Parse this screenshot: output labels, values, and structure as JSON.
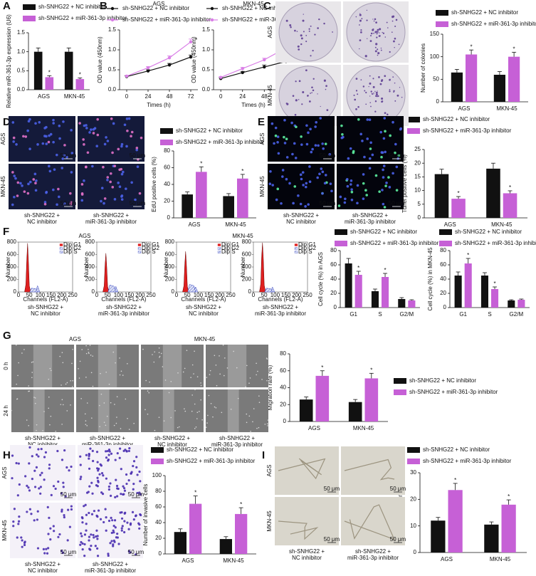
{
  "panel_letters": [
    "A",
    "B",
    "C",
    "D",
    "E",
    "F",
    "G",
    "H",
    "I"
  ],
  "scale_bar_label": "50 μm",
  "chart_data": [
    {
      "type": "bar",
      "ylabel": "Relative miR-361-3p expression (U6)",
      "categories": [
        "AGS",
        "MKN-45"
      ],
      "ylim": [
        0,
        1.5
      ],
      "yticks": [
        {
          "value": 0,
          "label": "0.0"
        },
        {
          "value": 0.5,
          "label": "0.5"
        },
        {
          "value": 1,
          "label": "1.0"
        },
        {
          "value": 1.5,
          "label": "1.5"
        }
      ],
      "series": [
        {
          "name": "sh-SNHG22 + NC inhibitor",
          "color": "#111111",
          "values": [
            1.0,
            1.0
          ],
          "errors": [
            0.1,
            0.1
          ]
        },
        {
          "name": "sh-SNHG22 + miR-361-3p inhibitor",
          "color": "#c660d6",
          "values": [
            0.33,
            0.28
          ],
          "errors": [
            0.04,
            0.03
          ],
          "significance": [
            "*",
            "*"
          ]
        }
      ]
    },
    {
      "type": "line",
      "title": "AGS",
      "xlabel": "Times (h)",
      "ylabel": "OD value (450nm)",
      "x": [
        0,
        24,
        48,
        72
      ],
      "xlim": [
        -8,
        80
      ],
      "xticks": [
        0,
        24,
        48,
        72
      ],
      "ylim": [
        0,
        1.5
      ],
      "yticks": [
        {
          "value": 0,
          "label": "0.0"
        },
        {
          "value": 0.5,
          "label": "0.5"
        },
        {
          "value": 1,
          "label": "1.0"
        },
        {
          "value": 1.5,
          "label": "1.5"
        }
      ],
      "series": [
        {
          "name": "sh-SNHG22 + NC inhibitor",
          "color": "#111111",
          "values": [
            0.33,
            0.47,
            0.62,
            0.82
          ],
          "errors": [
            0.02,
            0.03,
            0.04,
            0.05
          ]
        },
        {
          "name": "sh-SNHG22 + miR-361-3p inhibitor",
          "color": "#d97fe6",
          "values": [
            0.34,
            0.55,
            0.8,
            1.2
          ],
          "errors": [
            0.02,
            0.03,
            0.05,
            0.07
          ],
          "significance": [
            null,
            null,
            null,
            "*"
          ]
        }
      ]
    },
    {
      "type": "line",
      "title": "MKN-45",
      "xlabel": "Times (h)",
      "ylabel": "OD value (450nm)",
      "x": [
        0,
        24,
        48,
        72
      ],
      "xlim": [
        -8,
        80
      ],
      "xticks": [
        0,
        24,
        48,
        72
      ],
      "ylim": [
        0,
        1.5
      ],
      "yticks": [
        {
          "value": 0,
          "label": "0.0"
        },
        {
          "value": 0.5,
          "label": "0.5"
        },
        {
          "value": 1,
          "label": "1.0"
        },
        {
          "value": 1.5,
          "label": "1.5"
        }
      ],
      "series": [
        {
          "name": "sh-SNHG22 + NC inhibitor",
          "color": "#111111",
          "values": [
            0.28,
            0.43,
            0.57,
            0.71
          ],
          "errors": [
            0.02,
            0.03,
            0.05,
            0.06
          ]
        },
        {
          "name": "sh-SNHG22 + miR-361-3p inhibitor",
          "color": "#d97fe6",
          "values": [
            0.31,
            0.53,
            0.75,
            1.05
          ],
          "errors": [
            0.02,
            0.03,
            0.04,
            0.06
          ],
          "significance": [
            null,
            null,
            null,
            "*"
          ]
        }
      ]
    },
    {
      "type": "bar",
      "ylabel": "Number of colonies",
      "categories": [
        "AGS",
        "MKN-45"
      ],
      "ylim": [
        0,
        150
      ],
      "yticks": [
        0,
        50,
        100,
        150
      ],
      "series": [
        {
          "name": "sh-SNHG22 + NC inhibitor",
          "color": "#111111",
          "values": [
            65,
            60
          ],
          "errors": [
            7,
            7
          ]
        },
        {
          "name": "sh-SNHG22 + miR-361-3p inhibitor",
          "color": "#c660d6",
          "values": [
            105,
            100
          ],
          "errors": [
            10,
            10
          ],
          "significance": [
            "*",
            "*"
          ]
        }
      ]
    },
    {
      "type": "bar",
      "ylabel": "EdU positive cells (%)",
      "categories": [
        "AGS",
        "MKN-45"
      ],
      "ylim": [
        0,
        80
      ],
      "yticks": [
        0,
        20,
        40,
        60,
        80
      ],
      "series": [
        {
          "name": "sh-SNHG22 + NC inhibitor",
          "color": "#111111",
          "values": [
            28,
            26
          ],
          "errors": [
            3,
            3
          ]
        },
        {
          "name": "sh-SNHG22 + miR-361-3p inhibitor",
          "color": "#c660d6",
          "values": [
            55,
            47
          ],
          "errors": [
            6,
            5
          ],
          "significance": [
            "*",
            "*"
          ]
        }
      ]
    },
    {
      "type": "bar",
      "ylabel": "Tunel positive cells (%)",
      "categories": [
        "AGS",
        "MKN-45"
      ],
      "ylim": [
        0,
        25
      ],
      "yticks": [
        0,
        5,
        10,
        15,
        20,
        25
      ],
      "series": [
        {
          "name": "sh-SNHG22 + NC inhibitor",
          "color": "#111111",
          "values": [
            16,
            18
          ],
          "errors": [
            1.8,
            2
          ]
        },
        {
          "name": "sh-SNHG22 + miR-361-3p inhibitor",
          "color": "#c660d6",
          "values": [
            7,
            9
          ],
          "errors": [
            0.8,
            0.9
          ],
          "significance": [
            "*",
            "*"
          ]
        }
      ]
    },
    {
      "type": "flow",
      "title": "AGS",
      "ylabel": "Number",
      "xlabel": "Channels (FL2-A)",
      "caption": [
        "sh-SNHG22 +",
        "NC inhibitor"
      ],
      "xlim": [
        0,
        250
      ],
      "xticks": [
        0,
        50,
        100,
        150,
        200,
        250
      ],
      "ylim": [
        0,
        800
      ],
      "yticks": [
        0,
        200,
        400,
        600,
        800
      ],
      "series": [
        {
          "name": "Dip G1",
          "color": "#e02020",
          "x": [
            28,
            34,
            38,
            42,
            46,
            50,
            56
          ],
          "values": [
            0,
            120,
            500,
            780,
            480,
            100,
            0
          ]
        },
        {
          "name": "Dip G2",
          "color": "#3040c0",
          "x": [
            78,
            84,
            88,
            92,
            98
          ],
          "values": [
            0,
            60,
            100,
            60,
            0
          ]
        },
        {
          "name": "Dip S",
          "color": "#3040c0",
          "x": [
            52,
            60,
            70,
            80,
            88
          ],
          "values": [
            0,
            60,
            55,
            50,
            0
          ]
        }
      ]
    },
    {
      "type": "flow",
      "ylabel": "Number",
      "xlabel": "Channels (FL2-A)",
      "caption": [
        "sh-SNHG22 +",
        "miR-361-3p inhibitor"
      ],
      "xlim": [
        0,
        250
      ],
      "xticks": [
        0,
        50,
        100,
        150,
        200,
        250
      ],
      "ylim": [
        0,
        800
      ],
      "yticks": [
        0,
        200,
        400,
        600,
        800
      ],
      "series": [
        {
          "name": "Dip G1",
          "color": "#e02020",
          "x": [
            28,
            34,
            38,
            42,
            46,
            50,
            56
          ],
          "values": [
            0,
            100,
            420,
            620,
            400,
            90,
            0
          ]
        },
        {
          "name": "Dip G2",
          "color": "#3040c0",
          "x": [
            78,
            84,
            88,
            92,
            98
          ],
          "values": [
            0,
            50,
            90,
            50,
            0
          ]
        },
        {
          "name": "Dip S",
          "color": "#3040c0",
          "x": [
            52,
            60,
            70,
            80,
            88
          ],
          "values": [
            0,
            110,
            100,
            90,
            0
          ]
        }
      ]
    },
    {
      "type": "flow",
      "title": "MKN-45",
      "ylabel": "Number",
      "xlabel": "Channels (FL2-A)",
      "caption": [
        "sh-SNHG22 +",
        "NC inhibitor"
      ],
      "xlim": [
        0,
        250
      ],
      "xticks": [
        0,
        50,
        100,
        150,
        200,
        250
      ],
      "ylim": [
        0,
        800
      ],
      "yticks": [
        0,
        200,
        400,
        600,
        800
      ],
      "series": [
        {
          "name": "Dip G1",
          "color": "#e02020",
          "x": [
            28,
            34,
            38,
            42,
            46,
            50,
            56
          ],
          "values": [
            0,
            100,
            430,
            650,
            420,
            90,
            0
          ]
        },
        {
          "name": "Dip G2",
          "color": "#3040c0",
          "x": [
            78,
            84,
            88,
            92,
            98
          ],
          "values": [
            0,
            50,
            80,
            50,
            0
          ]
        },
        {
          "name": "Dip S",
          "color": "#3040c0",
          "x": [
            52,
            60,
            70,
            80,
            88
          ],
          "values": [
            0,
            120,
            110,
            100,
            0
          ]
        }
      ]
    },
    {
      "type": "flow",
      "ylabel": "Number",
      "xlabel": "Channels (FL2-A)",
      "caption": [
        "sh-SNHG22 +",
        "miR-361-3p inhibitor"
      ],
      "xlim": [
        0,
        250
      ],
      "xticks": [
        0,
        50,
        100,
        150,
        200,
        250
      ],
      "ylim": [
        0,
        800
      ],
      "yticks": [
        0,
        200,
        400,
        600,
        800
      ],
      "series": [
        {
          "name": "Dip G1",
          "color": "#e02020",
          "x": [
            28,
            34,
            38,
            42,
            46,
            50,
            56
          ],
          "values": [
            0,
            130,
            560,
            790,
            520,
            110,
            0
          ]
        },
        {
          "name": "Dip G2",
          "color": "#3040c0",
          "x": [
            78,
            84,
            88,
            92,
            98
          ],
          "values": [
            0,
            45,
            80,
            45,
            0
          ]
        },
        {
          "name": "Dip S",
          "color": "#3040c0",
          "x": [
            52,
            60,
            70,
            80,
            88
          ],
          "values": [
            0,
            60,
            55,
            50,
            0
          ]
        }
      ]
    },
    {
      "type": "bar",
      "ylabel": "Cell cycle (%) in AGS",
      "categories": [
        "G1",
        "S",
        "G2/M"
      ],
      "ylim": [
        0,
        80
      ],
      "yticks": [
        0,
        20,
        40,
        60,
        80
      ],
      "series": [
        {
          "name": "sh-SNHG22 + NC inhibitor",
          "color": "#111111",
          "values": [
            62,
            23,
            12
          ],
          "errors": [
            7,
            3,
            2
          ]
        },
        {
          "name": "sh-SNHG22 + miR-361-3p inhibitor",
          "color": "#c660d6",
          "values": [
            46,
            43,
            10
          ],
          "errors": [
            5,
            5,
            1
          ],
          "significance": [
            "*",
            "*",
            null
          ]
        }
      ]
    },
    {
      "type": "bar",
      "ylabel": "Cell cycle (%) in MKN-45",
      "categories": [
        "G1",
        "S",
        "G2/M"
      ],
      "ylim": [
        0,
        80
      ],
      "yticks": [
        0,
        20,
        40,
        60,
        80
      ],
      "series": [
        {
          "name": "sh-SNHG22 + NC inhibitor",
          "color": "#111111",
          "values": [
            45,
            45,
            10
          ],
          "errors": [
            5,
            4,
            1
          ]
        },
        {
          "name": "sh-SNHG22 + miR-361-3p inhibitor",
          "color": "#c660d6",
          "values": [
            62,
            26,
            11
          ],
          "errors": [
            7,
            3,
            1
          ],
          "significance": [
            "*",
            "*",
            null
          ]
        }
      ]
    },
    {
      "type": "bar",
      "ylabel": "Migration rate (%)",
      "categories": [
        "AGS",
        "MKN-45"
      ],
      "ylim": [
        0,
        80
      ],
      "yticks": [
        0,
        20,
        40,
        60,
        80
      ],
      "legend": "right",
      "series": [
        {
          "name": "sh-SNHG22 + NC inhibitor",
          "color": "#111111",
          "values": [
            26,
            23
          ],
          "errors": [
            3,
            3
          ]
        },
        {
          "name": "sh-SNHG22 + miR-361-3p inhibitor",
          "color": "#c660d6",
          "values": [
            54,
            51
          ],
          "errors": [
            6,
            6
          ],
          "significance": [
            "*",
            "*"
          ]
        }
      ]
    },
    {
      "type": "bar",
      "ylabel": "Number of invasive cells",
      "categories": [
        "AGS",
        "MKN-45"
      ],
      "ylim": [
        0,
        100
      ],
      "yticks": [
        0,
        20,
        40,
        60,
        80,
        100
      ],
      "series": [
        {
          "name": "sh-SNHG22 + NC inhibitor",
          "color": "#111111",
          "values": [
            28,
            19
          ],
          "errors": [
            4,
            3
          ]
        },
        {
          "name": "sh-SNHG22 + miR-361-3p inhibitor",
          "color": "#c660d6",
          "values": [
            64,
            51
          ],
          "errors": [
            10,
            8
          ],
          "significance": [
            "*",
            "*"
          ]
        }
      ]
    },
    {
      "type": "bar",
      "ylabel": "Tube formation",
      "categories": [
        "AGS",
        "MKN-45"
      ],
      "ylim": [
        0,
        30
      ],
      "yticks": [
        0,
        10,
        20,
        30
      ],
      "series": [
        {
          "name": "sh-SNHG22 + NC inhibitor",
          "color": "#111111",
          "values": [
            12,
            10.5
          ],
          "errors": [
            1.2,
            1
          ]
        },
        {
          "name": "sh-SNHG22 + miR-361-3p inhibitor",
          "color": "#c660d6",
          "values": [
            23.5,
            18
          ],
          "errors": [
            2.5,
            1.8
          ],
          "significance": [
            "*",
            "*"
          ]
        }
      ]
    }
  ],
  "image_panels": [
    {
      "style": "colony",
      "rows": [
        "AGS",
        "MKN-45"
      ],
      "columns": [
        [
          "sh-SNHG22 +",
          "NC inhibitor"
        ],
        [
          "sh-SNHG22 +",
          "miR-361-3p inhibitor"
        ]
      ]
    },
    {
      "style": "edu",
      "scale_bar": true,
      "rows": [
        "AGS",
        "MKN-45"
      ],
      "columns": [
        [
          "sh-SNHG22 +",
          "NC inhibitor"
        ],
        [
          "sh-SNHG22 +",
          "miR-361-3p inhibitor"
        ]
      ]
    },
    {
      "style": "tunel",
      "scale_bar": true,
      "rows": [
        "AGS",
        "MKN-45"
      ],
      "columns": [
        [
          "sh-SNHG22 +",
          "NC inhibitor"
        ],
        [
          "sh-SNHG22 +",
          "miR-361-3p inhibitor"
        ]
      ]
    },
    {
      "style": "wound",
      "rows": [
        "0 h",
        "24 h"
      ],
      "groups": [
        "AGS",
        "MKN-45"
      ],
      "columns": [
        [
          "sh-SNHG22 +",
          "NC inhibitor"
        ],
        [
          "sh-SNHG22 +",
          "miR-361-3p inhibitor"
        ],
        [
          "sh-SNHG22 +",
          "NC inhibitor"
        ],
        [
          "sh-SNHG22 +",
          "miR-361-3p inhibitor"
        ]
      ]
    },
    {
      "style": "transwell",
      "scale_bar": true,
      "rows": [
        "AGS",
        "MKN-45"
      ],
      "columns": [
        [
          "sh-SNHG22 +",
          "NC inhibitor"
        ],
        [
          "sh-SNHG22 +",
          "miR-361-3p inhibitor"
        ]
      ]
    },
    {
      "style": "tube",
      "scale_bar": true,
      "rows": [
        "AGS",
        "MKN-45"
      ],
      "columns": [
        [
          "sh-SNHG22 +",
          "NC inhibitor"
        ],
        [
          "sh-SNHG22 +",
          "miR-361-3p inhibitor"
        ]
      ]
    }
  ]
}
